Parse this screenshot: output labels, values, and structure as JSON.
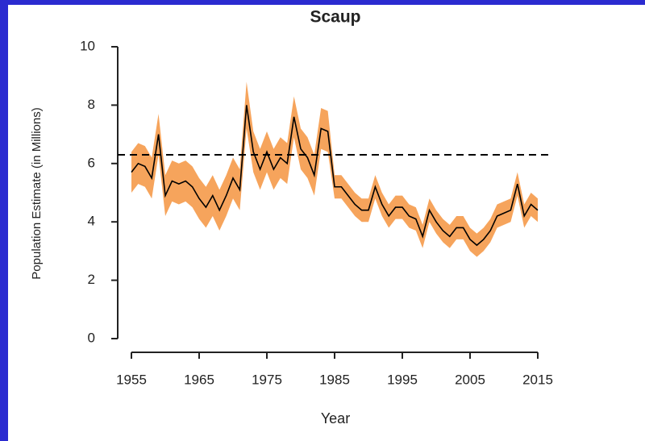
{
  "chart_data": {
    "type": "band-line",
    "title": "Scaup",
    "xlabel": "Year",
    "ylabel": "Population Estimate (in Millions)",
    "x": [
      1955,
      1956,
      1957,
      1958,
      1959,
      1960,
      1961,
      1962,
      1963,
      1964,
      1965,
      1966,
      1967,
      1968,
      1969,
      1970,
      1971,
      1972,
      1973,
      1974,
      1975,
      1976,
      1977,
      1978,
      1979,
      1980,
      1981,
      1982,
      1983,
      1984,
      1985,
      1986,
      1987,
      1988,
      1989,
      1990,
      1991,
      1992,
      1993,
      1994,
      1995,
      1996,
      1997,
      1998,
      1999,
      2000,
      2001,
      2002,
      2003,
      2004,
      2005,
      2006,
      2007,
      2008,
      2009,
      2010,
      2011,
      2012,
      2013,
      2014,
      2015
    ],
    "values": [
      5.7,
      6.0,
      5.9,
      5.5,
      7.0,
      4.9,
      5.4,
      5.3,
      5.4,
      5.2,
      4.8,
      4.5,
      4.9,
      4.4,
      4.9,
      5.5,
      5.1,
      8.0,
      6.4,
      5.8,
      6.4,
      5.8,
      6.2,
      6.0,
      7.6,
      6.5,
      6.2,
      5.6,
      7.2,
      7.1,
      5.2,
      5.2,
      4.9,
      4.6,
      4.4,
      4.4,
      5.2,
      4.6,
      4.2,
      4.5,
      4.5,
      4.2,
      4.1,
      3.5,
      4.4,
      4.0,
      3.7,
      3.5,
      3.8,
      3.8,
      3.4,
      3.2,
      3.4,
      3.7,
      4.2,
      4.3,
      4.4,
      5.3,
      4.2,
      4.6,
      4.4
    ],
    "lower": [
      5.0,
      5.3,
      5.2,
      4.8,
      6.3,
      4.2,
      4.7,
      4.6,
      4.7,
      4.5,
      4.1,
      3.8,
      4.2,
      3.7,
      4.2,
      4.8,
      4.4,
      7.2,
      5.7,
      5.1,
      5.7,
      5.1,
      5.5,
      5.3,
      6.9,
      5.8,
      5.5,
      4.9,
      6.5,
      6.4,
      4.8,
      4.8,
      4.5,
      4.2,
      4.0,
      4.0,
      4.8,
      4.2,
      3.8,
      4.1,
      4.1,
      3.8,
      3.7,
      3.1,
      4.0,
      3.6,
      3.3,
      3.1,
      3.4,
      3.4,
      3.0,
      2.8,
      3.0,
      3.3,
      3.8,
      3.9,
      4.0,
      4.9,
      3.8,
      4.2,
      4.0
    ],
    "upper": [
      6.4,
      6.7,
      6.6,
      6.2,
      7.7,
      5.6,
      6.1,
      6.0,
      6.1,
      5.9,
      5.5,
      5.2,
      5.6,
      5.1,
      5.6,
      6.2,
      5.8,
      8.8,
      7.1,
      6.5,
      7.1,
      6.5,
      6.9,
      6.7,
      8.3,
      7.2,
      6.9,
      6.3,
      7.9,
      7.8,
      5.6,
      5.6,
      5.3,
      5.0,
      4.8,
      4.8,
      5.6,
      5.0,
      4.6,
      4.9,
      4.9,
      4.6,
      4.5,
      3.9,
      4.8,
      4.4,
      4.1,
      3.9,
      4.2,
      4.2,
      3.8,
      3.6,
      3.8,
      4.1,
      4.6,
      4.7,
      4.8,
      5.7,
      4.6,
      5.0,
      4.8
    ],
    "color": "#000000",
    "band_color": "#f6a45c",
    "reference_line": 6.3,
    "xlim": [
      1955,
      2015
    ],
    "xticks": [
      1955,
      1965,
      1975,
      1985,
      1995,
      2005,
      2015
    ],
    "ylim": [
      0,
      10
    ],
    "yticks": [
      0,
      2,
      4,
      6,
      8,
      10
    ]
  }
}
